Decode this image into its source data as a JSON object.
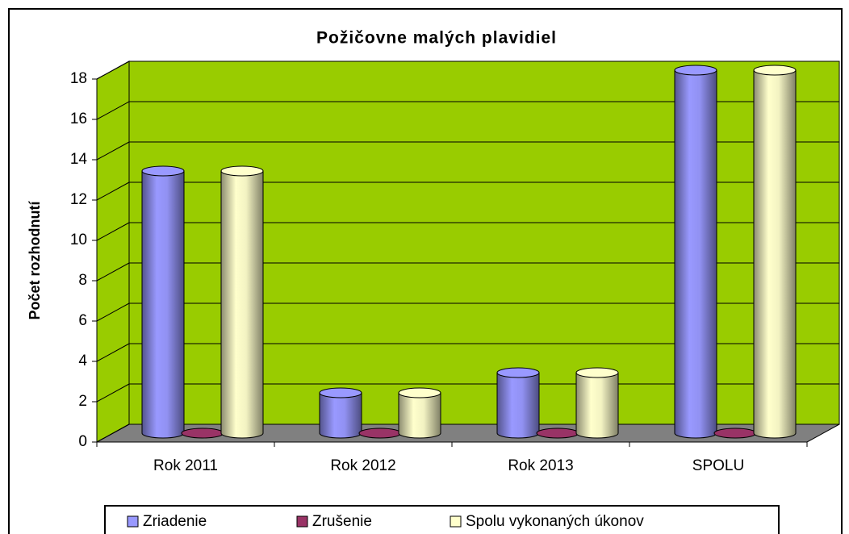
{
  "chart_data": {
    "type": "bar3d",
    "title": "Požičovne malých plavidiel",
    "y_label": "Počet rozhodnutí",
    "categories": [
      "Rok 2011",
      "Rok 2012",
      "Rok 2013",
      "SPOLU"
    ],
    "series": [
      {
        "name": "Zriadenie",
        "color": "#9999ff",
        "values": [
          13,
          2,
          3,
          18
        ]
      },
      {
        "name": "Zrušenie",
        "color": "#993366",
        "values": [
          0,
          0,
          0,
          0
        ]
      },
      {
        "name": "Spolu vykonaných úkonov",
        "color": "#ffffcc",
        "values": [
          13,
          2,
          3,
          18
        ]
      }
    ],
    "ylim": [
      0,
      18
    ],
    "yticks": [
      0,
      2,
      4,
      6,
      8,
      10,
      12,
      14,
      16,
      18
    ],
    "grid": true,
    "wall_color": "#99cc00",
    "floor_color": "#808080",
    "legend": "bottom"
  }
}
